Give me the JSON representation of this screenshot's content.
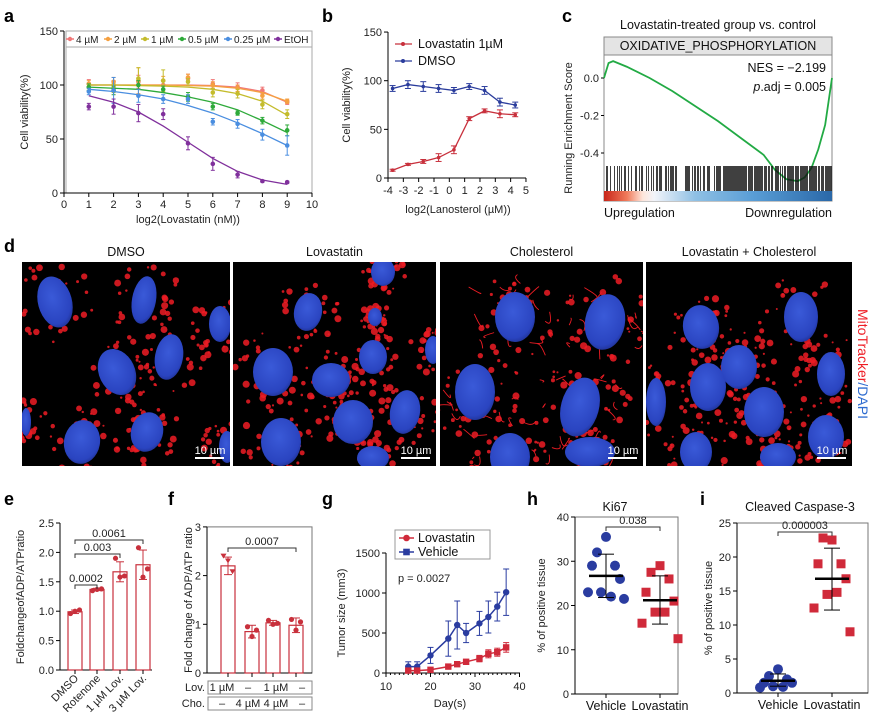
{
  "chart_data": [
    {
      "panel_label": "a",
      "type": "scatter",
      "xlabel": "log2(Lovastatin (nM))",
      "ylabel": "Cell viability(%)",
      "xlim": [
        0,
        10
      ],
      "ylim": [
        0,
        150
      ],
      "x_ticks": [
        0,
        1,
        2,
        3,
        4,
        5,
        6,
        7,
        8,
        9,
        10
      ],
      "y_ticks": [
        0,
        50,
        100,
        150
      ],
      "legend_position": "top",
      "x": [
        1,
        2,
        3,
        4,
        5,
        6,
        7,
        8,
        9
      ],
      "series": [
        {
          "name": "4 µM",
          "color": "#f07878",
          "values": [
            101,
            100,
            103,
            100,
            106,
            101,
            98,
            95,
            84
          ],
          "err": [
            4,
            4,
            6,
            4,
            4,
            4,
            4,
            3,
            2
          ],
          "fit": [
            100,
            100,
            100,
            100,
            100,
            99.5,
            98,
            94,
            84
          ]
        },
        {
          "name": "2 µM",
          "color": "#f5a040",
          "values": [
            101,
            103,
            104,
            104,
            107,
            100,
            97,
            90,
            85
          ],
          "err": [
            3,
            4,
            12,
            4,
            3,
            3,
            3,
            3,
            2
          ],
          "fit": [
            100,
            100,
            100,
            100,
            99.5,
            99,
            97,
            93,
            85
          ]
        },
        {
          "name": "1 µM",
          "color": "#c4bc2c",
          "values": [
            98,
            97,
            106,
            104,
            103,
            93,
            92,
            82,
            73
          ],
          "err": [
            3,
            4,
            10,
            10,
            3,
            4,
            4,
            4,
            4
          ],
          "fit": [
            100,
            100,
            99.5,
            99,
            98,
            96,
            92,
            85,
            72
          ]
        },
        {
          "name": "0.5 µM",
          "color": "#2eaa3a",
          "values": [
            98,
            95,
            100,
            96,
            89,
            80,
            74,
            67,
            58
          ],
          "err": [
            3,
            4,
            4,
            3,
            4,
            3,
            2,
            3,
            5
          ],
          "fit": [
            98,
            97,
            96,
            93,
            89,
            84,
            77,
            67,
            56
          ]
        },
        {
          "name": "0.25 µM",
          "color": "#4a8ee0",
          "values": [
            94,
            95,
            90,
            87,
            87,
            66,
            64,
            54,
            44
          ],
          "err": [
            3,
            12,
            6,
            4,
            4,
            3,
            4,
            5,
            9
          ],
          "fit": [
            96,
            94,
            91,
            87,
            81,
            74,
            65,
            55,
            44
          ]
        },
        {
          "name": "EtOH",
          "color": "#80309c",
          "values": [
            80,
            80,
            74,
            73,
            46,
            27,
            17,
            11,
            10
          ],
          "err": [
            3,
            7,
            8,
            5,
            6,
            6,
            3,
            1,
            1
          ],
          "fit": [
            90,
            84,
            75,
            62,
            47,
            32,
            20,
            12,
            8
          ]
        }
      ]
    },
    {
      "panel_label": "b",
      "type": "line",
      "xlabel": "log2(Lanosterol (µM))",
      "ylabel": "Cell viability(%)",
      "xlim": [
        -4,
        5
      ],
      "ylim": [
        0,
        150
      ],
      "x_ticks": [
        -4,
        -3,
        -2,
        -1,
        0,
        1,
        2,
        3,
        4,
        5
      ],
      "y_ticks": [
        0,
        50,
        100,
        150
      ],
      "legend_position": "top-left",
      "x": [
        -3.7,
        -2.7,
        -1.7,
        -0.7,
        0.3,
        1.3,
        2.3,
        3.3,
        4.3
      ],
      "series": [
        {
          "name": "Lovastatin 1µM",
          "color": "#c8303c",
          "values": [
            8,
            14,
            17,
            21,
            29,
            61,
            69,
            66,
            65
          ],
          "err": [
            1,
            1,
            2,
            4,
            4,
            2,
            2,
            4,
            2
          ]
        },
        {
          "name": "DMSO",
          "color": "#2a3c9c",
          "values": [
            92,
            96,
            94,
            92,
            90,
            94,
            90,
            78,
            75
          ],
          "err": [
            3,
            4,
            5,
            4,
            3,
            3,
            4,
            4,
            3
          ]
        }
      ]
    },
    {
      "panel_label": "c",
      "type": "line",
      "title": "Lovastatin-treated group vs. control",
      "gene_set": "OXIDATIVE_PHOSPHORYLATION",
      "ylabel": "Running Enrichment Score",
      "y_ticks": [
        "0.0",
        "-0.2",
        "-0.4"
      ],
      "y_tick_values": [
        0,
        -0.2,
        -0.4
      ],
      "ylim": [
        -0.6,
        0.12
      ],
      "nes": "NES = −2.199",
      "padj_prefix": "p",
      "padj_rest": ".adj = 0.005",
      "left_label": "Upregulation",
      "right_label": "Downregulation",
      "line_color": "#22aa44",
      "x": [
        0,
        0.02,
        0.04,
        0.1,
        0.2,
        0.3,
        0.4,
        0.5,
        0.6,
        0.7,
        0.75,
        0.8,
        0.85,
        0.88,
        0.91,
        0.94,
        0.97,
        1.0
      ],
      "running_score": [
        0,
        0.08,
        0.09,
        0.06,
        0.0,
        -0.07,
        -0.15,
        -0.23,
        -0.32,
        -0.41,
        -0.49,
        -0.54,
        -0.55,
        -0.53,
        -0.48,
        -0.38,
        -0.25,
        0.0
      ]
    },
    {
      "panel_label": "e",
      "type": "bar",
      "ylabel": "FoldchangeofADP/ATPratio",
      "ylim": [
        0,
        2.5
      ],
      "y_ticks": [
        "0.0",
        "0.5",
        "1.0",
        "1.5",
        "2.0",
        "2.5"
      ],
      "y_tick_values": [
        0,
        0.5,
        1,
        1.5,
        2,
        2.5
      ],
      "categories": [
        "DMSO",
        "Rotenone",
        "1 µM Lov.",
        "3 µM Lov."
      ],
      "values": [
        0.99,
        1.37,
        1.67,
        1.79
      ],
      "sd": [
        0.03,
        0.02,
        0.17,
        0.25
      ],
      "points": [
        [
          0.96,
          1.0,
          1.02
        ],
        [
          1.35,
          1.37,
          1.38
        ],
        [
          1.9,
          1.58,
          1.6
        ],
        [
          2.08,
          1.58,
          1.72
        ]
      ],
      "color": "#c8303c",
      "comparisons": [
        {
          "from": 0,
          "to": 1,
          "p": "0.0002"
        },
        {
          "from": 0,
          "to": 2,
          "p": "0.003"
        },
        {
          "from": 0,
          "to": 3,
          "p": "0.0061"
        }
      ]
    },
    {
      "panel_label": "f",
      "type": "bar",
      "ylabel": "Fold change of ADP/ATP ratio",
      "ylim": [
        0,
        3
      ],
      "y_ticks": [
        0,
        1,
        2,
        3
      ],
      "values": [
        2.2,
        0.85,
        1.03,
        0.98
      ],
      "sd": [
        0.18,
        0.13,
        0.05,
        0.15
      ],
      "points": [
        [
          2.4,
          2.3,
          2.08
        ],
        [
          0.95,
          0.75,
          0.88
        ],
        [
          1.08,
          1.0,
          1.02
        ],
        [
          1.1,
          0.88,
          1.05
        ]
      ],
      "color": "#c8303c",
      "comparisons": [
        {
          "from": 0,
          "to": 3,
          "p": "0.0007"
        }
      ],
      "conditions": [
        {
          "label": "Lov.",
          "values": [
            "1 µM",
            "–",
            "1 µM",
            "–"
          ]
        },
        {
          "label": "Cho.",
          "values": [
            "–",
            "4 µM",
            "4 µM",
            "–"
          ]
        }
      ]
    },
    {
      "panel_label": "g",
      "type": "line",
      "xlabel": "Day(s)",
      "ylabel": "Tumor size (mm3)",
      "xlim": [
        10,
        40
      ],
      "ylim": [
        0,
        1500
      ],
      "x_ticks": [
        10,
        20,
        30,
        40
      ],
      "y_ticks": [
        0,
        500,
        1000,
        1500
      ],
      "annotation": "p = 0.0027",
      "legend_position": "top-left",
      "x": [
        15,
        17,
        20,
        24,
        26,
        28,
        31,
        33,
        35,
        37
      ],
      "series": [
        {
          "name": "Lovastatin",
          "color": "#d02a3a",
          "marker": "circle",
          "values": [
            30,
            30,
            40,
            80,
            110,
            140,
            180,
            240,
            260,
            320
          ],
          "err": [
            20,
            20,
            15,
            20,
            25,
            30,
            40,
            50,
            50,
            60
          ]
        },
        {
          "name": "Vehicle",
          "color": "#2a3ca0",
          "marker": "square",
          "values": [
            80,
            80,
            220,
            430,
            600,
            500,
            620,
            700,
            830,
            1010
          ],
          "err": [
            60,
            60,
            100,
            220,
            300,
            120,
            150,
            200,
            180,
            290
          ]
        }
      ]
    },
    {
      "panel_label": "h",
      "type": "scatter",
      "title": "Ki67",
      "ylabel": "% of positive tissue",
      "ylim": [
        0,
        40
      ],
      "y_ticks": [
        0,
        10,
        20,
        30,
        40
      ],
      "categories": [
        "Vehicle",
        "Lovastatin"
      ],
      "groups": [
        {
          "name": "Vehicle",
          "color": "#2a3ca0",
          "marker": "circle",
          "values": [
            35.5,
            32,
            29,
            29,
            26,
            23,
            22,
            23,
            21.5
          ],
          "mean": 26.7,
          "sd": [
            21.8,
            31.6
          ]
        },
        {
          "name": "Lovastatin",
          "color": "#d02a3a",
          "marker": "square",
          "values": [
            29,
            27.5,
            26,
            23,
            21,
            18.5,
            18.5,
            16,
            12.5
          ],
          "mean": 21.2,
          "sd": [
            15.8,
            26.7
          ]
        }
      ],
      "comparison": {
        "p": "0.038"
      }
    },
    {
      "panel_label": "i",
      "type": "scatter",
      "title": "Cleaved Caspase-3",
      "ylabel": "% of positive tissue",
      "ylim": [
        0,
        25
      ],
      "y_ticks": [
        0,
        5,
        10,
        15,
        20,
        25
      ],
      "categories": [
        "Vehicle",
        "Lovastatin"
      ],
      "groups": [
        {
          "name": "Vehicle",
          "color": "#2a3ca0",
          "marker": "circle",
          "values": [
            3.5,
            2.5,
            2.0,
            1.5,
            1.5,
            1.0,
            0.9,
            0.8
          ],
          "mean": 1.8,
          "sd": [
            1.0,
            2.8
          ]
        },
        {
          "name": "Lovastatin",
          "color": "#d02a3a",
          "marker": "square",
          "values": [
            22.5,
            22.8,
            19,
            19,
            16.8,
            14.5,
            14.8,
            12.5,
            9
          ],
          "mean": 16.8,
          "sd": [
            12.2,
            21.3
          ]
        }
      ],
      "comparison": {
        "p": "0.000003"
      }
    }
  ],
  "microscopy": {
    "panel_label": "d",
    "conditions": [
      "DMSO",
      "Lovastatin",
      "Cholesterol",
      "Lovastatin + Cholesterol"
    ],
    "scale_bar": "10 µm",
    "stain_label_red": "MitoTracker",
    "stain_label_blue": "/DAPI",
    "red_color": "#ee1c24",
    "blue_color": "#2e6cd0"
  }
}
